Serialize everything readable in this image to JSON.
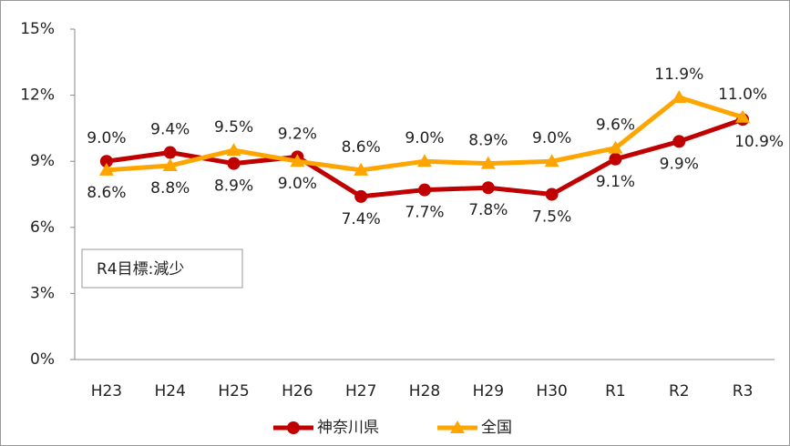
{
  "chart_data": {
    "type": "line",
    "categories": [
      "H23",
      "H24",
      "H25",
      "H26",
      "H27",
      "H28",
      "H29",
      "H30",
      "R1",
      "R2",
      "R3"
    ],
    "series": [
      {
        "name": "神奈川県",
        "color": "#c00000",
        "marker": "circle",
        "values": [
          9.0,
          9.4,
          8.9,
          9.2,
          7.4,
          7.7,
          7.8,
          7.5,
          9.1,
          9.9,
          10.9
        ],
        "value_labels": [
          "9.0%",
          "9.4%",
          "8.9%",
          "9.2%",
          "7.4%",
          "7.7%",
          "7.8%",
          "7.5%",
          "9.1%",
          "9.9%",
          "10.9%"
        ]
      },
      {
        "name": "全国",
        "color": "#ffa500",
        "marker": "triangle",
        "values": [
          8.6,
          8.8,
          9.5,
          9.0,
          8.6,
          9.0,
          8.9,
          9.0,
          9.6,
          11.9,
          11.0
        ],
        "value_labels": [
          "8.6%",
          "8.8%",
          "9.5%",
          "9.0%",
          "8.6%",
          "9.0%",
          "8.9%",
          "9.0%",
          "9.6%",
          "11.9%",
          "11.0%"
        ]
      }
    ],
    "ylim": [
      0,
      15
    ],
    "yticks": [
      {
        "value": 0,
        "label": "0%"
      },
      {
        "value": 3,
        "label": "3%"
      },
      {
        "value": 6,
        "label": "6%"
      },
      {
        "value": 9,
        "label": "9%"
      },
      {
        "value": 12,
        "label": "12%"
      },
      {
        "value": 15,
        "label": "15%"
      }
    ],
    "grid": false,
    "legend": "bottom",
    "annotation": "R4目標:減少"
  }
}
